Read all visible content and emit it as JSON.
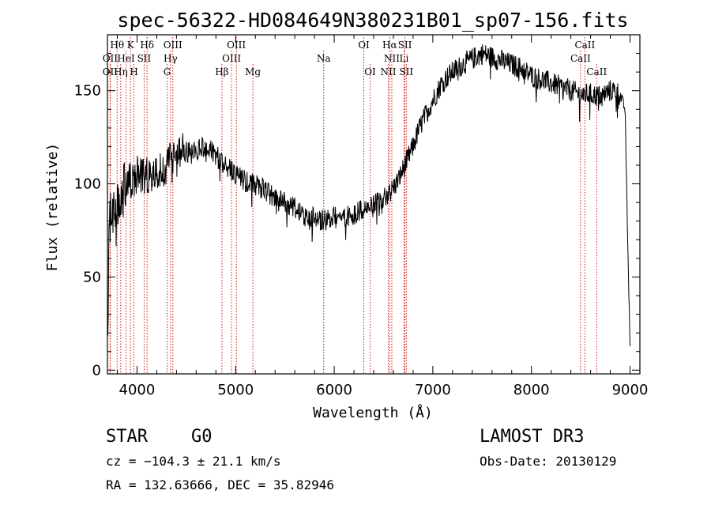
{
  "chart_data": {
    "type": "line",
    "title": "spec-56322-HD084649N380231B01_sp07-156.fits",
    "xlabel": "Wavelength (Å)",
    "ylabel": "Flux (relative)",
    "xlim": [
      3700,
      9100
    ],
    "ylim": [
      -2,
      180
    ],
    "xticks": [
      4000,
      5000,
      6000,
      7000,
      8000,
      9000
    ],
    "yticks": [
      0,
      50,
      100,
      150
    ],
    "series": [
      {
        "name": "flux",
        "anchors_x": [
          3700,
          3720,
          3740,
          3770,
          3800,
          3830,
          3850,
          3880,
          3920,
          3960,
          4000,
          4050,
          4100,
          4150,
          4200,
          4250,
          4300,
          4350,
          4400,
          4450,
          4500,
          4550,
          4600,
          4650,
          4700,
          4750,
          4800,
          4850,
          4900,
          4950,
          5000,
          5050,
          5100,
          5150,
          5200,
          5300,
          5400,
          5500,
          5600,
          5700,
          5800,
          5900,
          6000,
          6100,
          6200,
          6300,
          6400,
          6500,
          6550,
          6600,
          6650,
          6700,
          6750,
          6800,
          6850,
          6900,
          7000,
          7100,
          7200,
          7300,
          7400,
          7500,
          7600,
          7700,
          7800,
          7900,
          8000,
          8100,
          8200,
          8300,
          8400,
          8500,
          8600,
          8700,
          8800,
          8850,
          8900,
          8950,
          8980,
          9000
        ],
        "anchors_y": [
          10,
          78,
          85,
          82,
          86,
          96,
          92,
          100,
          102,
          100,
          106,
          104,
          105,
          104,
          108,
          106,
          110,
          114,
          113,
          118,
          118,
          116,
          117,
          120,
          117,
          118,
          115,
          112,
          110,
          107,
          104,
          103,
          101,
          100,
          99,
          97,
          92,
          90,
          87,
          82,
          82,
          80,
          82,
          82,
          84,
          86,
          88,
          92,
          94,
          98,
          102,
          108,
          114,
          120,
          128,
          134,
          145,
          155,
          160,
          164,
          167,
          170,
          168,
          166,
          164,
          162,
          158,
          156,
          154,
          152,
          150,
          148,
          148,
          147,
          150,
          150,
          148,
          140,
          60,
          15
        ],
        "noise_seed": 56322
      }
    ],
    "lines": [
      {
        "label": "Hθ",
        "x": 3798,
        "row": 1
      },
      {
        "label": "K",
        "x": 3934,
        "row": 1
      },
      {
        "label": "Hδ",
        "x": 4102,
        "row": 1
      },
      {
        "label": "OIII",
        "x": 4363,
        "row": 1
      },
      {
        "label": "OIII",
        "x": 5007,
        "row": 1
      },
      {
        "label": "OI",
        "x": 6300,
        "row": 1
      },
      {
        "label": "Hα",
        "x": 6563,
        "row": 1
      },
      {
        "label": "SII",
        "x": 6717,
        "row": 1
      },
      {
        "label": "CaII",
        "x": 8542,
        "row": 1
      },
      {
        "label": "OII",
        "x": 3727,
        "row": 2
      },
      {
        "label": "HeI",
        "x": 3889,
        "row": 2
      },
      {
        "label": "SII",
        "x": 4072,
        "row": 2
      },
      {
        "label": "Hγ",
        "x": 4340,
        "row": 2
      },
      {
        "label": "OIII",
        "x": 4959,
        "row": 2
      },
      {
        "label": "Na",
        "x": 5893,
        "row": 2
      },
      {
        "label": "NII",
        "x": 6584,
        "row": 2
      },
      {
        "label": "Li",
        "x": 6708,
        "row": 2
      },
      {
        "label": "CaII",
        "x": 8498,
        "row": 2
      },
      {
        "label": "OII",
        "x": 3727,
        "row": 3
      },
      {
        "label": "Hη",
        "x": 3835,
        "row": 3
      },
      {
        "label": "H",
        "x": 3969,
        "row": 3
      },
      {
        "label": "G",
        "x": 4305,
        "row": 3
      },
      {
        "label": "Hβ",
        "x": 4861,
        "row": 3
      },
      {
        "label": "Mg",
        "x": 5175,
        "row": 3
      },
      {
        "label": "OI",
        "x": 6364,
        "row": 3
      },
      {
        "label": "NII",
        "x": 6548,
        "row": 3
      },
      {
        "label": "SII",
        "x": 6731,
        "row": 3
      },
      {
        "label": "CaII",
        "x": 8662,
        "row": 3
      }
    ],
    "line_color": "#cc0000"
  },
  "info": {
    "object_class": "STAR",
    "subclass": "G0",
    "survey": "LAMOST DR3",
    "cz": "cz = −104.3 ± 21.1 km/s",
    "obs_date": "Obs-Date: 20130129",
    "coords": "RA = 132.63666, DEC =  35.82946"
  }
}
